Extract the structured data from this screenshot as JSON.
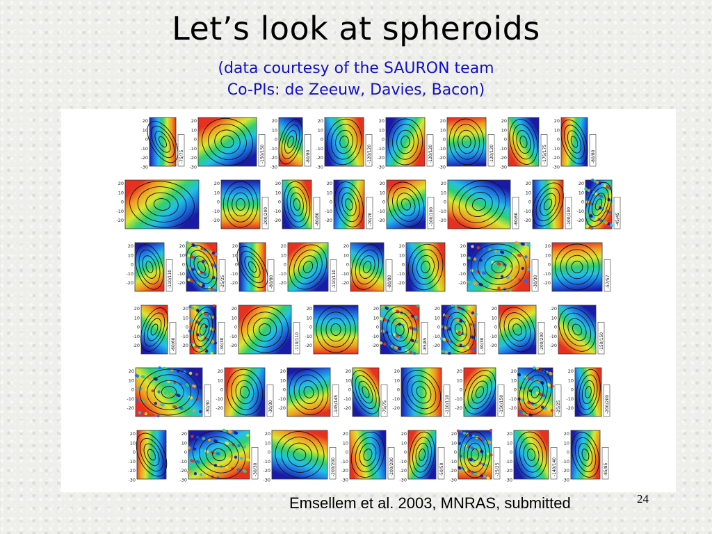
{
  "slide": {
    "title": "Let’s look at spheroids",
    "subtitle_line1": "(data courtesy of the SAURON team",
    "subtitle_line2": "Co-PIs: de Zeeuw, Davies, Bacon)",
    "citation": "Emsellem et al. 2003, MNRAS, submitted",
    "page_number": "24"
  },
  "figure": {
    "axis_ticks": [
      "20",
      "10",
      "0",
      "-10",
      "-20",
      "-30"
    ],
    "rows": [
      {
        "panels": [
          {
            "scale": "-75/75",
            "style": "rot"
          },
          {
            "scale": "-150/150",
            "style": "rot"
          },
          {
            "scale": "-80/80",
            "style": "rot"
          },
          {
            "scale": "-120/120",
            "style": "rot"
          },
          {
            "scale": "-120/120",
            "style": "rot"
          },
          {
            "scale": "-120/120",
            "style": "rot"
          },
          {
            "scale": "-175/175",
            "style": "rot"
          },
          {
            "scale": "-80/80",
            "style": "rot"
          }
        ]
      },
      {
        "panels": [
          {
            "scale": "",
            "style": "rot"
          },
          {
            "scale": "-200/200",
            "style": "rot"
          },
          {
            "scale": "-80/80",
            "style": "rot"
          },
          {
            "scale": "-70/70",
            "style": "rot"
          },
          {
            "scale": "-100/100",
            "style": "rot"
          },
          {
            "scale": "-60/60",
            "style": "rot"
          },
          {
            "scale": "-100/100",
            "style": "rot"
          },
          {
            "scale": "-45/45",
            "style": "dots"
          }
        ]
      },
      {
        "panels": [
          {
            "scale": "-110/110",
            "style": "rot"
          },
          {
            "scale": "-25/25",
            "style": "dots"
          },
          {
            "scale": "-80/80",
            "style": "rot"
          },
          {
            "scale": "-110/110",
            "style": "rot"
          },
          {
            "scale": "-80/80",
            "style": "rot"
          },
          {
            "scale": "",
            "style": "rot"
          },
          {
            "scale": "-30/30",
            "style": "dots"
          },
          {
            "scale": "-57/57",
            "style": "rot"
          }
        ]
      },
      {
        "panels": [
          {
            "scale": "-60/60",
            "style": "rot"
          },
          {
            "scale": "-30/30",
            "style": "dots"
          },
          {
            "scale": "-110/110",
            "style": "rot"
          },
          {
            "scale": "",
            "style": "rot"
          },
          {
            "scale": "-85/85",
            "style": "dots"
          },
          {
            "scale": "-30/30",
            "style": "dots"
          },
          {
            "scale": "-200/200",
            "style": "rot"
          },
          {
            "scale": "-150/150",
            "style": "rot"
          }
        ]
      },
      {
        "panels": [
          {
            "scale": "-30/30",
            "style": "dots"
          },
          {
            "scale": "-30/30",
            "style": "rot"
          },
          {
            "scale": "-145/145",
            "style": "rot"
          },
          {
            "scale": "-75/75",
            "style": "rot"
          },
          {
            "scale": "-110/110",
            "style": "rot"
          },
          {
            "scale": "-150/150",
            "style": "rot"
          },
          {
            "scale": "-25/25",
            "style": "dots"
          },
          {
            "scale": "-200/200",
            "style": "rot"
          }
        ]
      },
      {
        "panels": [
          {
            "scale": "",
            "style": "rot"
          },
          {
            "scale": "-30/30",
            "style": "dots"
          },
          {
            "scale": "-200/200",
            "style": "rot"
          },
          {
            "scale": "-200/200",
            "style": "rot"
          },
          {
            "scale": "-50/50",
            "style": "rot"
          },
          {
            "scale": "-25/25",
            "style": "dots"
          },
          {
            "scale": "-140/140",
            "style": "rot"
          },
          {
            "scale": "-85/85",
            "style": "rot"
          }
        ]
      }
    ]
  }
}
